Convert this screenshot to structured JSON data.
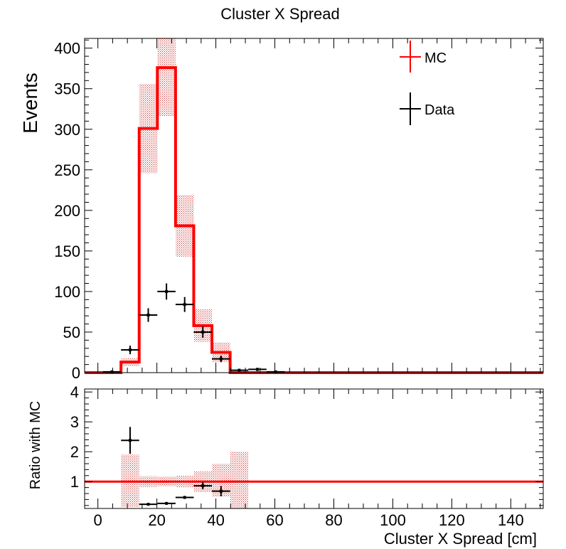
{
  "title": "Cluster X Spread",
  "colors": {
    "mc": "#ff0000",
    "mc_band": "#cc3333",
    "data": "#000000",
    "frame": "#000000"
  },
  "chart_data": [
    {
      "type": "histogram",
      "panel": "main",
      "title": "Cluster X Spread",
      "ylabel": "Events",
      "xlim": [
        -4.5,
        151
      ],
      "ylim": [
        0,
        412
      ],
      "yticks": [
        0,
        50,
        100,
        150,
        200,
        250,
        300,
        350,
        400
      ],
      "ytick_labels": [
        "0",
        "50",
        "100",
        "150",
        "200",
        "250",
        "300",
        "350",
        "400"
      ],
      "legend": {
        "placement": "top-right",
        "entries": [
          "MC",
          "Data"
        ]
      },
      "series": [
        {
          "name": "MC",
          "style": "step-line",
          "edges": [
            -4.5,
            1.667,
            7.833,
            14.0,
            20.167,
            26.333,
            32.5,
            38.667,
            44.833,
            51.0,
            57.167,
            63.333,
            151
          ],
          "values": [
            0,
            0,
            13,
            301,
            376,
            181,
            58,
            25,
            0,
            0,
            0,
            0
          ],
          "error": [
            0,
            0,
            5,
            55,
            60,
            38,
            20,
            12,
            0,
            0,
            0,
            0
          ]
        },
        {
          "name": "Data",
          "style": "points-with-errors",
          "x": [
            4.75,
            10.92,
            17.08,
            23.25,
            29.42,
            35.58,
            41.75,
            47.92,
            54.08,
            60.25
          ],
          "xerr": [
            3.08,
            3.08,
            3.08,
            3.08,
            3.08,
            3.08,
            3.08,
            3.08,
            3.08,
            3.08
          ],
          "y": [
            1,
            28,
            71,
            100,
            84,
            50,
            17,
            3,
            4,
            1
          ],
          "yerr": [
            1,
            5.3,
            8.4,
            10,
            9.2,
            7.1,
            4.1,
            1.7,
            2,
            1
          ]
        }
      ]
    },
    {
      "type": "ratio",
      "panel": "ratio",
      "xlabel": "Cluster X Spread [cm]",
      "ylabel": "Ratio with MC",
      "xlim": [
        -4.5,
        151
      ],
      "ylim": [
        0.1,
        4.1
      ],
      "xticks": [
        0,
        20,
        40,
        60,
        80,
        100,
        120,
        140
      ],
      "xtick_labels": [
        "0",
        "20",
        "40",
        "60",
        "80",
        "100",
        "120",
        "140"
      ],
      "yticks": [
        1,
        2,
        3,
        4
      ],
      "ytick_labels": [
        "1",
        "2",
        "3",
        "4"
      ],
      "reference_line": 1,
      "series": [
        {
          "name": "MC",
          "style": "error-band",
          "edges": [
            7.833,
            14.0,
            20.167,
            26.333,
            32.5,
            38.667,
            44.833,
            51.0
          ],
          "band_low": [
            0.15,
            0.82,
            0.84,
            0.8,
            0.65,
            0.5,
            0.0
          ],
          "band_high": [
            1.9,
            1.18,
            1.16,
            1.2,
            1.35,
            1.6,
            2.0
          ]
        },
        {
          "name": "Data",
          "style": "points-with-errors",
          "x": [
            10.92,
            17.08,
            23.25,
            29.42,
            35.58,
            41.75
          ],
          "xerr": [
            3.08,
            3.08,
            3.08,
            3.08,
            3.08,
            3.08
          ],
          "y": [
            2.38,
            0.24,
            0.27,
            0.47,
            0.86,
            0.68
          ],
          "yerr": [
            0.45,
            0.03,
            0.03,
            0.05,
            0.12,
            0.17
          ]
        }
      ]
    }
  ]
}
